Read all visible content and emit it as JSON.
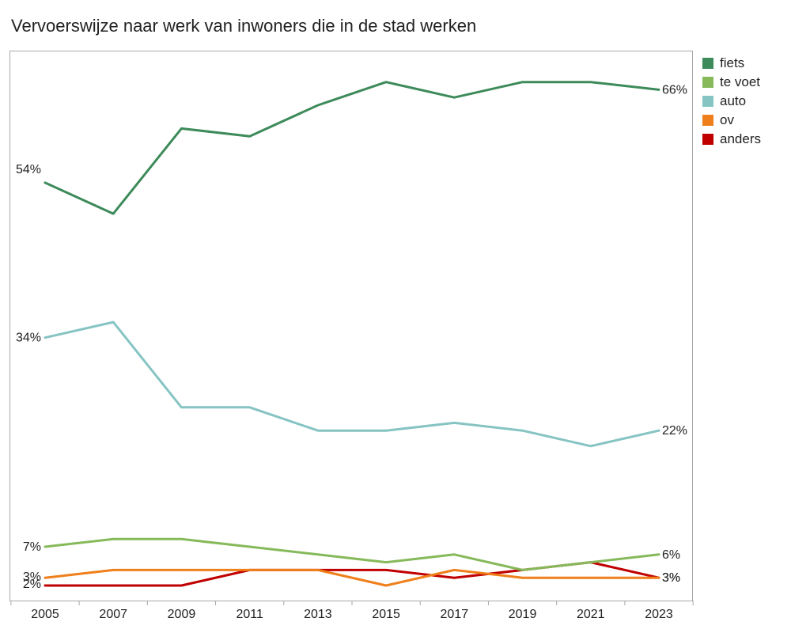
{
  "chart_data": {
    "type": "line",
    "title": "Vervoerswijze naar werk van inwoners die in de stad werken",
    "xlabel": "",
    "ylabel": "",
    "x": [
      "2005",
      "2007",
      "2009",
      "2011",
      "2013",
      "2015",
      "2017",
      "2019",
      "2021",
      "2023"
    ],
    "ylim": [
      0,
      70
    ],
    "grid": false,
    "legend_position": "right",
    "series": [
      {
        "name": "fiets",
        "color": "#3d8a5a",
        "values": [
          54,
          50,
          61,
          60,
          64,
          67,
          65,
          67,
          67,
          66
        ],
        "start_label": "54%",
        "end_label": "66%"
      },
      {
        "name": "te voet",
        "color": "#86b95a",
        "values": [
          7,
          8,
          8,
          7,
          6,
          5,
          6,
          4,
          5,
          6
        ],
        "start_label": "7%",
        "end_label": "6%"
      },
      {
        "name": "auto",
        "color": "#86c4c3",
        "values": [
          34,
          36,
          25,
          25,
          22,
          22,
          23,
          22,
          20,
          22
        ],
        "start_label": "34%",
        "end_label": "22%"
      },
      {
        "name": "ov",
        "color": "#ef7f1a",
        "values": [
          3,
          4,
          4,
          4,
          4,
          2,
          4,
          3,
          3,
          3
        ],
        "start_label": "3%",
        "end_label": "3%"
      },
      {
        "name": "anders",
        "color": "#c00000",
        "values": [
          2,
          2,
          2,
          4,
          4,
          4,
          3,
          4,
          5,
          3
        ],
        "start_label": "2%",
        "end_label": "3%"
      }
    ]
  }
}
